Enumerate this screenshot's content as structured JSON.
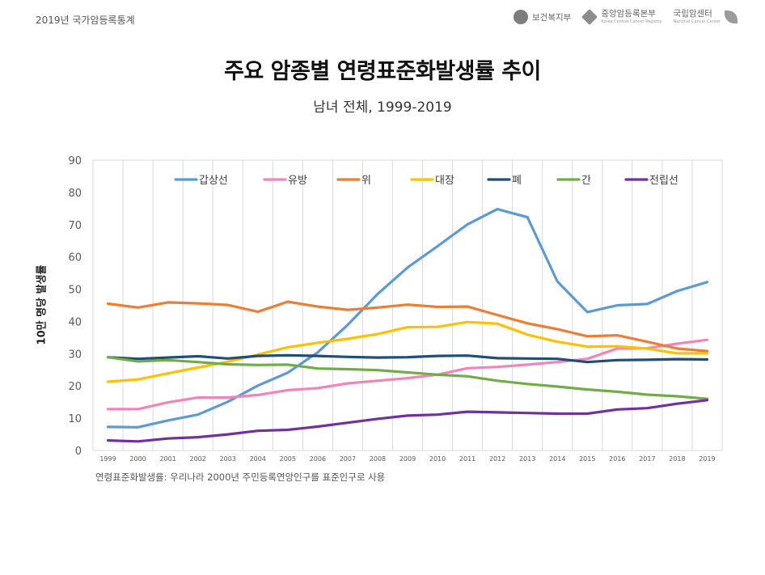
{
  "header": {
    "report_label": "2019년 국가암등록통계",
    "logos": [
      {
        "name": "보건복지부",
        "sub": ""
      },
      {
        "name": "중앙암등록본부",
        "sub": "Korea Central Cancer Registry"
      },
      {
        "name": "국립암센터",
        "sub": "National Cancer Center"
      }
    ]
  },
  "chart_data": {
    "type": "line",
    "title": "주요 암종별 연령표준화발생률 추이",
    "subtitle": "남녀 전체, 1999-2019",
    "ylabel": "10만 명당 발생률",
    "xlabel": "",
    "ylim": [
      0,
      90
    ],
    "yticks": [
      0,
      10,
      20,
      30,
      40,
      50,
      60,
      70,
      80,
      90
    ],
    "grid": "vertical",
    "legend_position": "top",
    "x": [
      "1999",
      "2000",
      "2001",
      "2002",
      "2003",
      "2004",
      "2005",
      "2006",
      "2007",
      "2008",
      "2009",
      "2010",
      "2011",
      "2012",
      "2013",
      "2014",
      "2015",
      "2016",
      "2017",
      "2018",
      "2019"
    ],
    "series": [
      {
        "name": "갑상선",
        "color": "#5B9BD5",
        "values": [
          7.3,
          7.2,
          9.3,
          11.1,
          15.1,
          20.1,
          24.1,
          30.4,
          38.9,
          48.5,
          56.7,
          63.3,
          70.1,
          74.8,
          72.3,
          52.4,
          42.9,
          45.0,
          45.4,
          49.4,
          52.2
        ]
      },
      {
        "name": "유방",
        "color": "#F484B7",
        "values": [
          12.8,
          12.8,
          14.9,
          16.4,
          16.4,
          17.2,
          18.7,
          19.3,
          20.8,
          21.6,
          22.4,
          23.5,
          25.5,
          25.9,
          26.6,
          27.4,
          28.4,
          31.6,
          31.7,
          33.1,
          34.3
        ]
      },
      {
        "name": "위",
        "color": "#ED7D31",
        "values": [
          45.5,
          44.3,
          45.9,
          45.6,
          45.1,
          43.0,
          46.1,
          44.6,
          43.6,
          44.3,
          45.2,
          44.5,
          44.6,
          42.0,
          39.4,
          37.6,
          35.4,
          35.7,
          33.7,
          31.6,
          30.8
        ]
      },
      {
        "name": "대장",
        "color": "#FFC000",
        "values": [
          21.3,
          22.0,
          23.9,
          25.7,
          27.5,
          29.7,
          32.0,
          33.4,
          34.6,
          36.1,
          38.2,
          38.3,
          39.8,
          39.3,
          35.9,
          33.7,
          32.2,
          32.3,
          31.6,
          30.1,
          30.1
        ]
      },
      {
        "name": "폐",
        "color": "#1F4E79",
        "values": [
          28.9,
          28.4,
          28.8,
          29.2,
          28.5,
          29.3,
          29.5,
          29.3,
          29.0,
          28.8,
          28.9,
          29.3,
          29.4,
          28.6,
          28.5,
          28.4,
          27.4,
          28.0,
          28.1,
          28.3,
          28.2
        ]
      },
      {
        "name": "간",
        "color": "#70AD47",
        "values": [
          28.9,
          27.6,
          28.0,
          27.4,
          26.7,
          26.5,
          26.6,
          25.4,
          25.2,
          24.9,
          24.2,
          23.5,
          23.0,
          21.6,
          20.6,
          19.8,
          18.9,
          18.2,
          17.3,
          16.8,
          16.0
        ]
      },
      {
        "name": "전립선",
        "color": "#7030A0",
        "values": [
          3.1,
          2.8,
          3.7,
          4.1,
          5.0,
          6.1,
          6.4,
          7.4,
          8.6,
          9.8,
          10.8,
          11.1,
          12.0,
          11.8,
          11.6,
          11.4,
          11.4,
          12.7,
          13.1,
          14.5,
          15.6
        ]
      }
    ]
  },
  "footnote": "연령표준화발생률: 우리나라 2000년 주민등록연앙인구를 표준인구로 사용"
}
